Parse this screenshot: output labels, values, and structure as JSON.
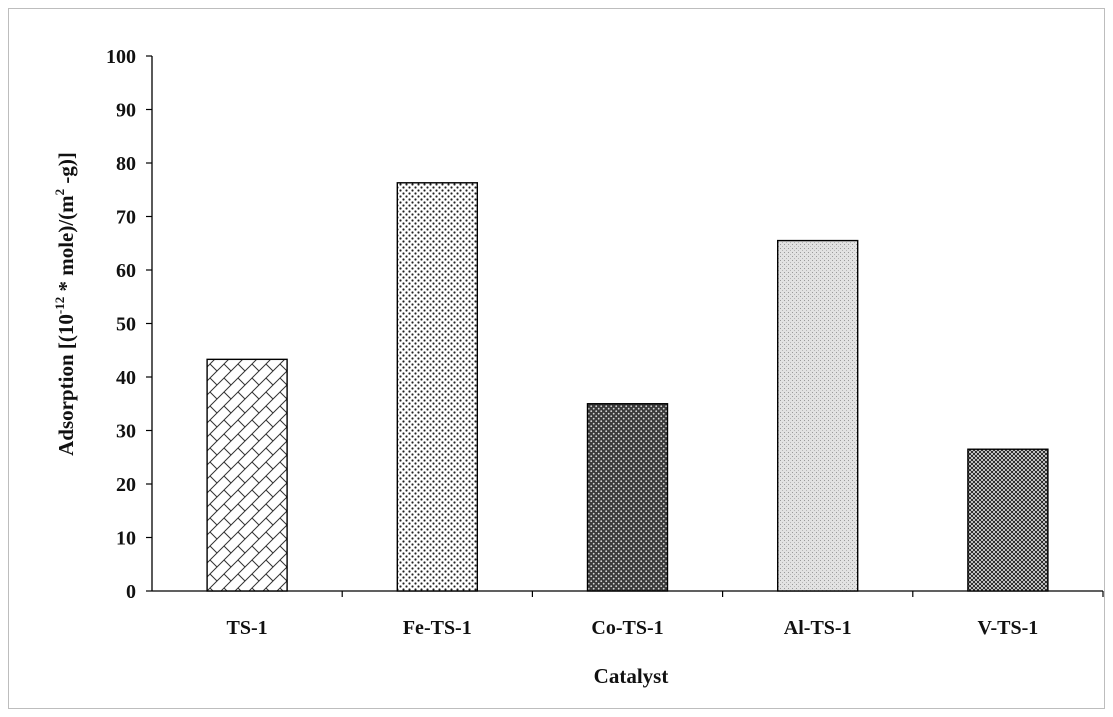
{
  "chart_data": {
    "type": "bar",
    "title": "",
    "xlabel": "Catalyst",
    "ylabel": {
      "part1": "Adsorption [(10",
      "sup1": "-12",
      "part2": " * mole)/(m",
      "sup2": "2",
      "part3": " -g)]"
    },
    "categories": [
      "TS-1",
      "Fe-TS-1",
      "Co-TS-1",
      "Al-TS-1",
      "V-TS-1"
    ],
    "values": [
      43.3,
      76.3,
      35.0,
      65.5,
      26.5
    ],
    "ylim": [
      0,
      100
    ],
    "yticks": [
      0,
      10,
      20,
      30,
      40,
      50,
      60,
      70,
      80,
      90,
      100
    ],
    "grid": false,
    "legend": "none",
    "bar_patterns": [
      "brick",
      "sparse-dots",
      "dark-dots",
      "light-grid",
      "dark-crosshatch"
    ]
  }
}
